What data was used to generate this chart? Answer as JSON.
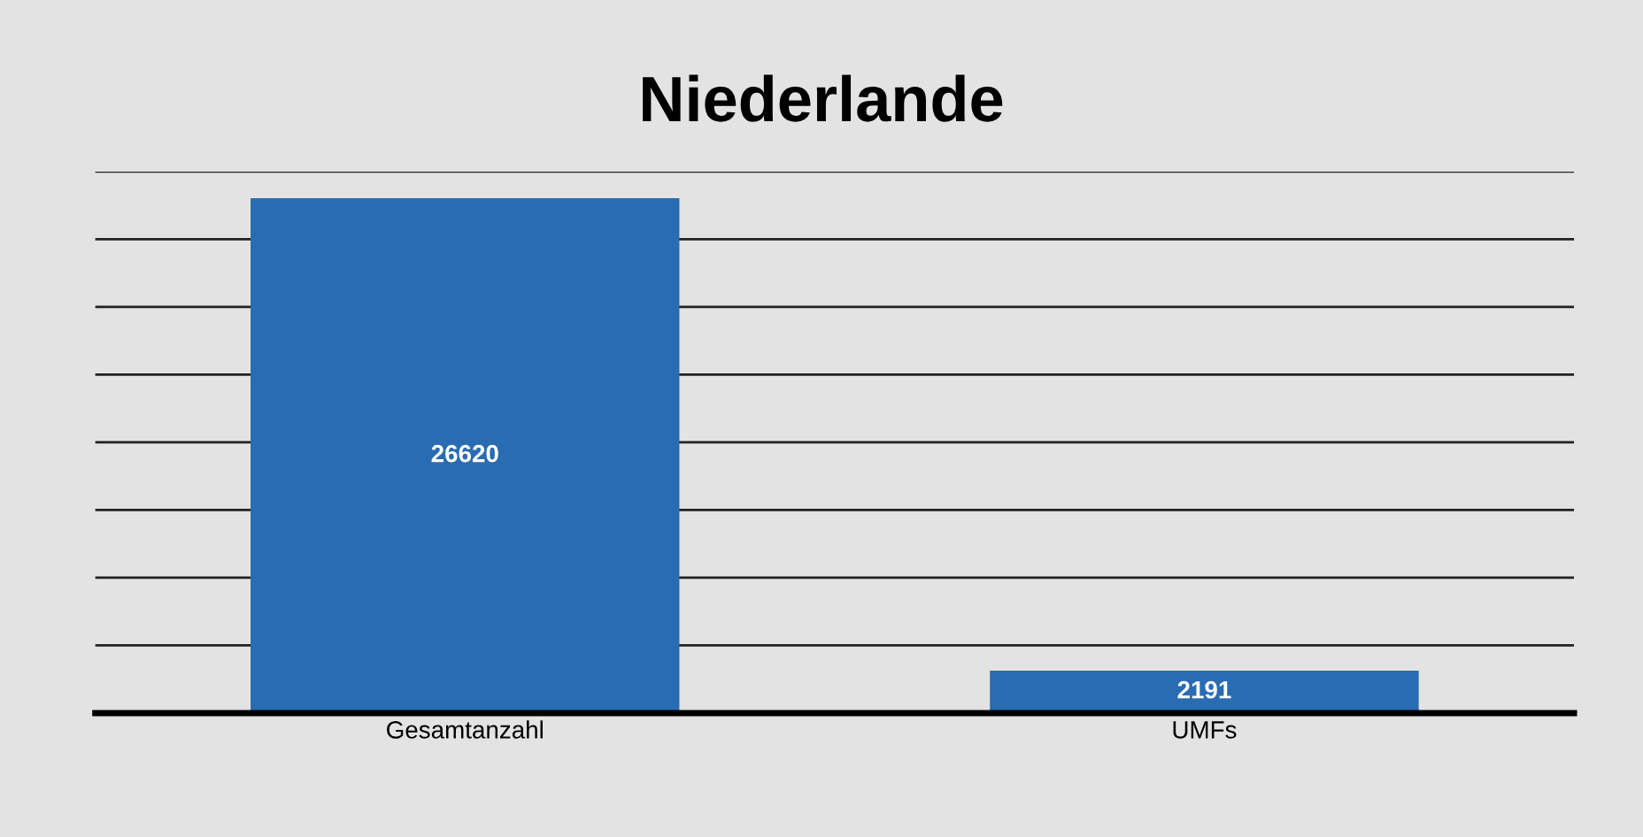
{
  "chart_data": {
    "type": "bar",
    "title": "Niederlande",
    "categories": [
      "Gesamtanzahl",
      "UMFs"
    ],
    "values": [
      26620,
      2191
    ],
    "color": "#2a6cb1",
    "data_labels": true,
    "grid": "y",
    "tick_labels": "x",
    "legend": false,
    "ylim": [
      0,
      28000
    ],
    "yticks": [
      {
        "value": 0,
        "label": null
      },
      {
        "value": 3500,
        "label": null
      },
      {
        "value": 7000,
        "label": null
      },
      {
        "value": 10500,
        "label": null
      },
      {
        "value": 14000,
        "label": null
      },
      {
        "value": 17500,
        "label": null
      },
      {
        "value": 21000,
        "label": null
      },
      {
        "value": 24500,
        "label": null
      },
      {
        "value": 28000,
        "label": null
      }
    ]
  }
}
